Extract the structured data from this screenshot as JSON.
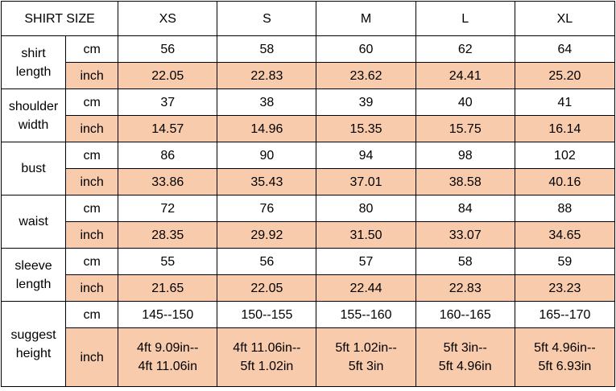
{
  "header": {
    "title": "SHIRT SIZE",
    "sizes": [
      "XS",
      "S",
      "M",
      "L",
      "XL"
    ]
  },
  "rows": [
    {
      "label": "shirt length",
      "units": [
        {
          "unit": "cm",
          "values": [
            "56",
            "58",
            "60",
            "62",
            "64"
          ]
        },
        {
          "unit": "inch",
          "values": [
            "22.05",
            "22.83",
            "23.62",
            "24.41",
            "25.20"
          ]
        }
      ]
    },
    {
      "label": "shoulder width",
      "units": [
        {
          "unit": "cm",
          "values": [
            "37",
            "38",
            "39",
            "40",
            "41"
          ]
        },
        {
          "unit": "inch",
          "values": [
            "14.57",
            "14.96",
            "15.35",
            "15.75",
            "16.14"
          ]
        }
      ]
    },
    {
      "label": "bust",
      "units": [
        {
          "unit": "cm",
          "values": [
            "86",
            "90",
            "94",
            "98",
            "102"
          ]
        },
        {
          "unit": "inch",
          "values": [
            "33.86",
            "35.43",
            "37.01",
            "38.58",
            "40.16"
          ]
        }
      ]
    },
    {
      "label": "waist",
      "units": [
        {
          "unit": "cm",
          "values": [
            "72",
            "76",
            "80",
            "84",
            "88"
          ]
        },
        {
          "unit": "inch",
          "values": [
            "28.35",
            "29.92",
            "31.50",
            "33.07",
            "34.65"
          ]
        }
      ]
    },
    {
      "label": "sleeve length",
      "units": [
        {
          "unit": "cm",
          "values": [
            "55",
            "56",
            "57",
            "58",
            "59"
          ]
        },
        {
          "unit": "inch",
          "values": [
            "21.65",
            "22.05",
            "22.44",
            "22.83",
            "23.23"
          ]
        }
      ]
    },
    {
      "label": "suggest height",
      "units": [
        {
          "unit": "cm",
          "values": [
            "145--150",
            "150--155",
            "155--160",
            "160--165",
            "165--170"
          ]
        },
        {
          "unit": "inch",
          "values": [
            "4ft 9.09in--\n4ft 11.06in",
            "4ft 11.06in--\n5ft 1.02in",
            "5ft 1.02in--\n5ft 3in",
            "5ft 3in--\n5ft 4.96in",
            "5ft 4.96in--\n5ft 6.93in"
          ]
        }
      ]
    }
  ]
}
